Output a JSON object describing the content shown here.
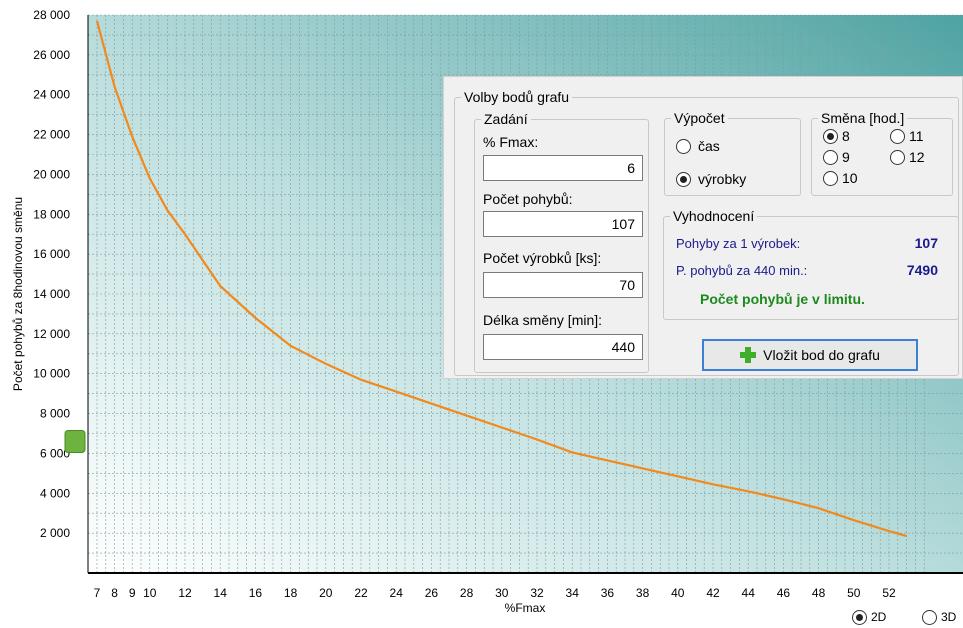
{
  "chart_data": {
    "type": "line",
    "xlabel": "%Fmax",
    "ylabel": "Počet pohybů za  8hodinovou směnu",
    "xlim": [
      7,
      54
    ],
    "ylim": [
      0,
      28000
    ],
    "x_ticks": [
      7,
      8,
      9,
      10,
      12,
      14,
      16,
      18,
      20,
      22,
      24,
      26,
      28,
      30,
      32,
      34,
      36,
      38,
      40,
      42,
      44,
      46,
      48,
      50,
      52
    ],
    "y_ticks": [
      2000,
      4000,
      6000,
      8000,
      10000,
      12000,
      14000,
      16000,
      18000,
      20000,
      22000,
      24000,
      26000,
      28000
    ],
    "y_tick_labels": [
      "2 000",
      "4 000",
      "6 000",
      "8 000",
      "10 000",
      "12 000",
      "14 000",
      "16 000",
      "18 000",
      "20 000",
      "22 000",
      "24 000",
      "26 000",
      "28 000"
    ],
    "series": [
      {
        "color": "#f08a1e",
        "x": [
          7,
          8,
          9,
          10,
          11,
          12,
          13,
          14,
          16,
          18,
          20,
          22,
          24,
          26,
          28,
          30,
          32,
          34,
          36,
          38,
          40,
          42,
          44,
          46,
          48,
          50,
          52,
          53
        ],
        "y": [
          27700,
          24400,
          21900,
          19800,
          18200,
          17000,
          15700,
          14400,
          12800,
          11400,
          10500,
          9700,
          9100,
          8500,
          7900,
          7300,
          6700,
          6050,
          5650,
          5250,
          4850,
          4450,
          4100,
          3700,
          3250,
          2650,
          2100,
          1850
        ]
      }
    ],
    "marker": {
      "x": 7,
      "y": 6700,
      "color": "#6db33f"
    },
    "grid": true
  },
  "options": {
    "title": "Volby bodů grafu",
    "zadani": {
      "title": "Zadání",
      "fmax_label": "% Fmax:",
      "fmax_value": "6",
      "pohyby_label": "Počet pohybů:",
      "pohyby_value": "107",
      "vyrobky_label": "Počet výrobků [ks]:",
      "vyrobky_value": "70",
      "smena_label": "Délka směny [min]:",
      "smena_value": "440"
    },
    "vypocet": {
      "title": "Výpočet",
      "cas": "čas",
      "vyrobky": "výrobky",
      "selected": "výrobky"
    },
    "smena": {
      "title": "Směna [hod.]",
      "options": [
        "8",
        "9",
        "10",
        "11",
        "12"
      ],
      "selected": "8"
    },
    "vyhodnoceni": {
      "title": "Vyhodnocení",
      "row1_label": "Pohyby za 1 výrobek:",
      "row1_value": "107",
      "row2_label": "P. pohybů za 440 min.:",
      "row2_value": "7490",
      "status": "Počet pohybů je v limitu."
    },
    "insert_button": "Vložit bod do grafu"
  },
  "view_mode": {
    "options": [
      "2D",
      "3D"
    ],
    "selected": "2D"
  }
}
